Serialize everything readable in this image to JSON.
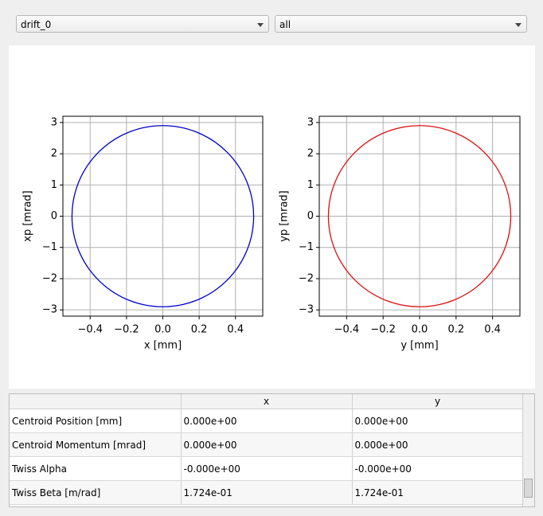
{
  "controls": {
    "element_select": "drift_0",
    "plane_select": "all"
  },
  "chart_data": [
    {
      "type": "ellipse",
      "xlabel": "x [mm]",
      "ylabel": "xp [mrad]",
      "color": "#0000cc",
      "cx": 0,
      "cy": 0,
      "rx": 0.5,
      "ry": 2.9,
      "xlim": [
        -0.55,
        0.55
      ],
      "ylim": [
        -3.2,
        3.2
      ],
      "grid": true,
      "xticks": [
        {
          "value": -0.4,
          "label": "−0.4"
        },
        {
          "value": -0.2,
          "label": "−0.2"
        },
        {
          "value": 0,
          "label": "0.0"
        },
        0.2,
        0.4
      ],
      "yticks": [
        {
          "value": -3,
          "label": "−3"
        },
        {
          "value": -2,
          "label": "−2"
        },
        {
          "value": -1,
          "label": "−1"
        },
        0,
        1,
        2,
        3
      ]
    },
    {
      "type": "ellipse",
      "xlabel": "y [mm]",
      "ylabel": "yp [mrad]",
      "color": "#dd1111",
      "cx": 0,
      "cy": 0,
      "rx": 0.5,
      "ry": 2.9,
      "xlim": [
        -0.55,
        0.55
      ],
      "ylim": [
        -3.2,
        3.2
      ],
      "grid": true,
      "xticks": [
        {
          "value": -0.4,
          "label": "−0.4"
        },
        {
          "value": -0.2,
          "label": "−0.2"
        },
        {
          "value": 0,
          "label": "0.0"
        },
        0.2,
        0.4
      ],
      "yticks": [
        {
          "value": -3,
          "label": "−3"
        },
        {
          "value": -2,
          "label": "−2"
        },
        {
          "value": -1,
          "label": "−1"
        },
        0,
        1,
        2,
        3
      ]
    }
  ],
  "table": {
    "columns": [
      "x",
      "y"
    ],
    "rows": [
      [
        "Centroid Position [mm]",
        "0.000e+00",
        "0.000e+00"
      ],
      [
        "Centroid Momentum [mrad]",
        "0.000e+00",
        "0.000e+00"
      ],
      [
        "Twiss Alpha",
        "-0.000e+00",
        "-0.000e+00"
      ],
      [
        "Twiss Beta [m/rad]",
        "1.724e-01",
        "1.724e-01"
      ]
    ]
  }
}
